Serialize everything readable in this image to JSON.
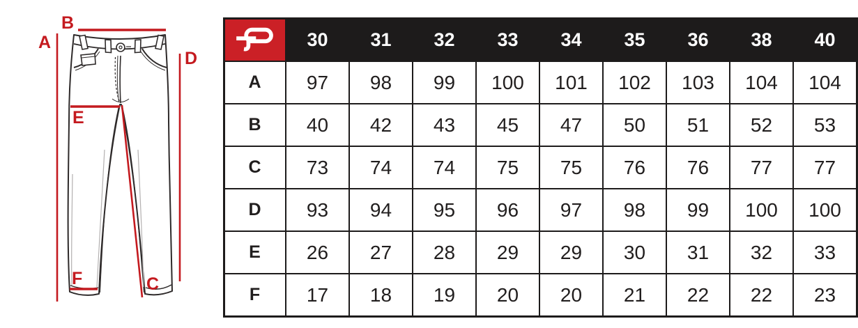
{
  "brand": {
    "logo_icon": "stylized-p-logo",
    "logo_bg_color": "#cb2026"
  },
  "diagram": {
    "labels": {
      "a": "A",
      "b": "B",
      "c": "C",
      "d": "D",
      "e": "E",
      "f": "F"
    },
    "line_color": "#c41a1f"
  },
  "chart_data": {
    "type": "table",
    "title": "",
    "columns": [
      "30",
      "31",
      "32",
      "33",
      "34",
      "35",
      "36",
      "38",
      "40"
    ],
    "rows": [
      {
        "label": "A",
        "values": [
          "97",
          "98",
          "99",
          "100",
          "101",
          "102",
          "103",
          "104",
          "104"
        ]
      },
      {
        "label": "B",
        "values": [
          "40",
          "42",
          "43",
          "45",
          "47",
          "50",
          "51",
          "52",
          "53"
        ]
      },
      {
        "label": "C",
        "values": [
          "73",
          "74",
          "74",
          "75",
          "75",
          "76",
          "76",
          "77",
          "77"
        ]
      },
      {
        "label": "D",
        "values": [
          "93",
          "94",
          "95",
          "96",
          "97",
          "98",
          "99",
          "100",
          "100"
        ]
      },
      {
        "label": "E",
        "values": [
          "26",
          "27",
          "28",
          "29",
          "29",
          "30",
          "31",
          "32",
          "33"
        ]
      },
      {
        "label": "F",
        "values": [
          "17",
          "18",
          "19",
          "20",
          "20",
          "21",
          "22",
          "22",
          "23"
        ]
      }
    ]
  },
  "colors": {
    "header_bg": "#1d1b1b",
    "header_text": "#ffffff",
    "table_border": "#1d1b1b",
    "cell_text": "#211e1e",
    "accent_red": "#c41a1f",
    "sketch_line": "#2e2a2a"
  }
}
